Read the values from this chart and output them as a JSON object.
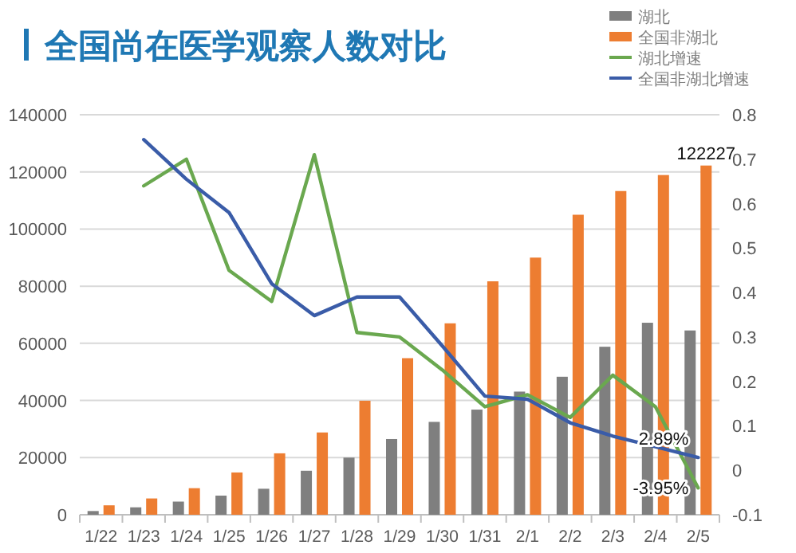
{
  "chart_data": {
    "type": "bar",
    "title": "全国尚在医学观察人数对比",
    "categories": [
      "1/22",
      "1/23",
      "1/24",
      "1/25",
      "1/26",
      "1/27",
      "1/28",
      "1/29",
      "1/30",
      "1/31",
      "2/1",
      "2/2",
      "2/3",
      "2/4",
      "2/5"
    ],
    "series": [
      {
        "name": "湖北",
        "color": "#7f7f7f",
        "values": [
          1300,
          2600,
          4600,
          6700,
          9100,
          15400,
          20000,
          26500,
          32500,
          36800,
          43100,
          48300,
          58800,
          67200,
          64500
        ]
      },
      {
        "name": "全国非湖北",
        "color": "#ed7d31",
        "values": [
          3300,
          5700,
          9300,
          14800,
          21500,
          28800,
          39900,
          54800,
          67000,
          81700,
          90000,
          105000,
          113300,
          118900,
          122227
        ],
        "value_labels": [
          null,
          null,
          null,
          null,
          null,
          null,
          null,
          null,
          null,
          null,
          null,
          null,
          null,
          null,
          "122227"
        ]
      },
      {
        "name": "湖北增速",
        "type": "line",
        "axis": "y2",
        "color": "#6aa84f",
        "values": [
          null,
          0.64,
          0.7,
          0.45,
          0.38,
          0.71,
          0.31,
          0.3,
          0.226,
          0.143,
          0.17,
          0.119,
          0.214,
          0.143,
          -0.0395
        ],
        "value_labels": [
          null,
          null,
          null,
          null,
          null,
          null,
          null,
          null,
          null,
          null,
          null,
          null,
          null,
          null,
          "-3.95%"
        ]
      },
      {
        "name": "全国非湖北增速",
        "type": "line",
        "axis": "y2",
        "color": "#3a5ca8",
        "values": [
          null,
          0.744,
          0.655,
          0.58,
          0.42,
          0.348,
          0.39,
          0.39,
          0.28,
          0.167,
          0.16,
          0.107,
          0.077,
          0.053,
          0.0289
        ],
        "value_labels": [
          null,
          null,
          null,
          null,
          null,
          null,
          null,
          null,
          null,
          null,
          null,
          null,
          null,
          null,
          "2.89%"
        ]
      }
    ],
    "ylim": [
      0,
      140000
    ],
    "yticks": [
      0,
      20000,
      40000,
      60000,
      80000,
      100000,
      120000,
      140000
    ],
    "y2lim": [
      -0.1,
      0.8
    ],
    "y2ticks": [
      -0.1,
      0,
      0.1,
      0.2,
      0.3,
      0.4,
      0.5,
      0.6,
      0.7,
      0.8
    ],
    "grid": "y",
    "legend": "top right"
  }
}
